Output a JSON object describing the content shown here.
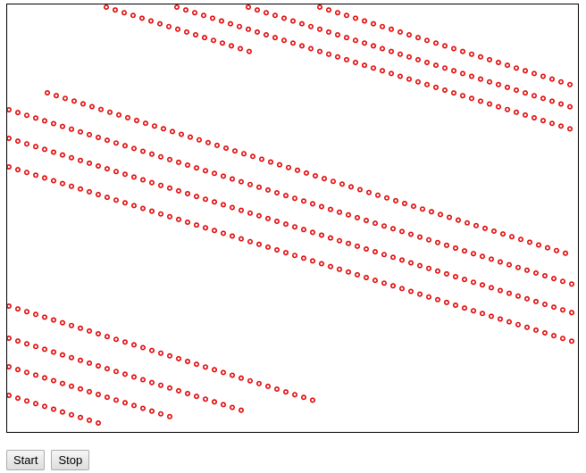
{
  "controls": {
    "start_label": "Start",
    "stop_label": "Stop"
  },
  "colors": {
    "dot_stroke": "#e00000",
    "canvas_border": "#000000",
    "canvas_background": "#ffffff"
  }
}
